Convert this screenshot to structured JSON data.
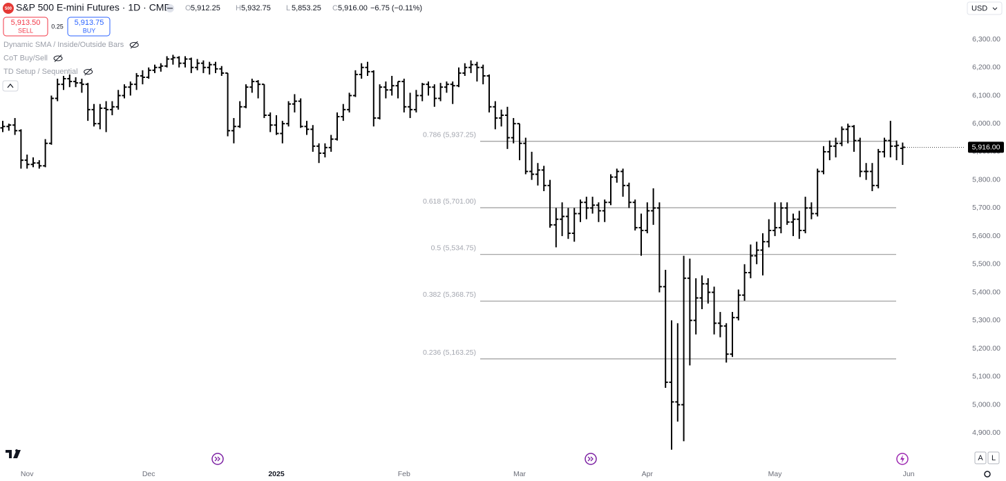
{
  "ui": {
    "symbol_icon": "500",
    "title": "S&P 500 E-mini Futures · 1D · CME",
    "ohlc": [
      {
        "label": "O",
        "value": "5,912.25"
      },
      {
        "label": "H",
        "value": "5,932.75"
      },
      {
        "label": "L",
        "value": "5,853.25"
      },
      {
        "label": "C",
        "value": "5,916.00"
      }
    ],
    "change": "−6.75 (−0.11%)",
    "sell": {
      "price": "5,913.50",
      "label": "SELL"
    },
    "spread": "0.25",
    "buy": {
      "price": "5,913.75",
      "label": "BUY"
    },
    "indicators": [
      "Dynamic SMA / Inside/Outside Bars",
      "CoT Buy/Sell",
      "TD Setup / Sequential"
    ],
    "currency": "USD",
    "scale_buttons": [
      "A",
      "L"
    ]
  },
  "chart_data": {
    "type": "ohlc",
    "color": "#000000",
    "grid": false,
    "categories": [
      null,
      null,
      null,
      null,
      "Nov",
      null,
      null,
      null,
      null,
      null,
      null,
      null,
      null,
      null,
      null,
      null,
      null,
      null,
      null,
      null,
      null,
      null,
      null,
      null,
      "Dec",
      null,
      null,
      null,
      null,
      null,
      null,
      null,
      null,
      null,
      null,
      null,
      null,
      null,
      null,
      null,
      null,
      null,
      null,
      null,
      null,
      "2025",
      null,
      null,
      null,
      null,
      null,
      null,
      null,
      null,
      null,
      null,
      null,
      null,
      null,
      null,
      null,
      null,
      null,
      null,
      null,
      null,
      "Feb",
      null,
      null,
      null,
      null,
      null,
      null,
      null,
      null,
      null,
      null,
      null,
      null,
      null,
      null,
      null,
      null,
      null,
      null,
      "Mar",
      null,
      null,
      null,
      null,
      null,
      null,
      null,
      null,
      null,
      null,
      null,
      null,
      null,
      null,
      null,
      null,
      null,
      null,
      null,
      null,
      "Apr",
      null,
      null,
      null,
      null,
      null,
      null,
      null,
      null,
      null,
      null,
      null,
      null,
      null,
      null,
      null,
      null,
      null,
      null,
      null,
      null,
      "May",
      null,
      null,
      null,
      null,
      null,
      null,
      null,
      null,
      null,
      null,
      null,
      null,
      null,
      null,
      null,
      null,
      null,
      null,
      null,
      null,
      null,
      "Jun"
    ],
    "values": [
      [
        5985,
        6010,
        5970,
        5990
      ],
      [
        5990,
        6000,
        5975,
        5995
      ],
      [
        5995,
        6020,
        5960,
        5975
      ],
      [
        5975,
        5980,
        5840,
        5870
      ],
      [
        5870,
        5890,
        5840,
        5855
      ],
      [
        5855,
        5880,
        5845,
        5860
      ],
      [
        5860,
        5870,
        5840,
        5850
      ],
      [
        5850,
        5945,
        5845,
        5930
      ],
      [
        5930,
        6100,
        5925,
        6090
      ],
      [
        6090,
        6160,
        6080,
        6140
      ],
      [
        6140,
        6170,
        6120,
        6160
      ],
      [
        6160,
        6175,
        6130,
        6150
      ],
      [
        6150,
        6165,
        6130,
        6145
      ],
      [
        6145,
        6160,
        6110,
        6140
      ],
      [
        6140,
        6145,
        6010,
        6050
      ],
      [
        6050,
        6070,
        5990,
        6000
      ],
      [
        6000,
        6070,
        5980,
        6055
      ],
      [
        6055,
        6080,
        5970,
        6050
      ],
      [
        6050,
        6080,
        6030,
        6060
      ],
      [
        6060,
        6120,
        6050,
        6100
      ],
      [
        6100,
        6140,
        6090,
        6130
      ],
      [
        6130,
        6150,
        6100,
        6140
      ],
      [
        6140,
        6180,
        6120,
        6170
      ],
      [
        6170,
        6190,
        6140,
        6165
      ],
      [
        6165,
        6200,
        6160,
        6190
      ],
      [
        6190,
        6210,
        6180,
        6200
      ],
      [
        6200,
        6215,
        6185,
        6205
      ],
      [
        6205,
        6240,
        6200,
        6230
      ],
      [
        6230,
        6245,
        6210,
        6235
      ],
      [
        6235,
        6240,
        6200,
        6215
      ],
      [
        6215,
        6240,
        6200,
        6230
      ],
      [
        6230,
        6235,
        6180,
        6200
      ],
      [
        6200,
        6230,
        6190,
        6215
      ],
      [
        6215,
        6225,
        6180,
        6200
      ],
      [
        6200,
        6220,
        6175,
        6210
      ],
      [
        6210,
        6220,
        6180,
        6195
      ],
      [
        6195,
        6205,
        6170,
        6180
      ],
      [
        6180,
        6180,
        5955,
        5975
      ],
      [
        5975,
        6020,
        5930,
        5990
      ],
      [
        5990,
        6080,
        5985,
        6060
      ],
      [
        6060,
        6140,
        6055,
        6130
      ],
      [
        6130,
        6160,
        6110,
        6150
      ],
      [
        6150,
        6155,
        6090,
        6140
      ],
      [
        6140,
        6140,
        6020,
        6030
      ],
      [
        6030,
        6040,
        5970,
        5995
      ],
      [
        5995,
        6030,
        5960,
        5965
      ],
      [
        5965,
        6010,
        5930,
        6000
      ],
      [
        6000,
        6080,
        5990,
        6070
      ],
      [
        6070,
        6105,
        6040,
        6080
      ],
      [
        6080,
        6090,
        5985,
        5990
      ],
      [
        5990,
        6010,
        5960,
        5980
      ],
      [
        5980,
        5995,
        5900,
        5920
      ],
      [
        5920,
        5930,
        5860,
        5895
      ],
      [
        5895,
        5930,
        5880,
        5915
      ],
      [
        5915,
        5960,
        5900,
        5945
      ],
      [
        5945,
        6040,
        5940,
        6025
      ],
      [
        6025,
        6070,
        6010,
        6050
      ],
      [
        6050,
        6110,
        6040,
        6100
      ],
      [
        6100,
        6190,
        6095,
        6175
      ],
      [
        6175,
        6215,
        6160,
        6200
      ],
      [
        6200,
        6220,
        6170,
        6185
      ],
      [
        6185,
        6190,
        5990,
        6020
      ],
      [
        6020,
        6140,
        6015,
        6130
      ],
      [
        6130,
        6150,
        6090,
        6120
      ],
      [
        6120,
        6170,
        6100,
        6135
      ],
      [
        6135,
        6150,
        6090,
        6150
      ],
      [
        6150,
        6160,
        6040,
        6060
      ],
      [
        6060,
        6110,
        6020,
        6050
      ],
      [
        6050,
        6120,
        6040,
        6100
      ],
      [
        6100,
        6145,
        6080,
        6140
      ],
      [
        6140,
        6150,
        6100,
        6130
      ],
      [
        6130,
        6140,
        6060,
        6090
      ],
      [
        6090,
        6145,
        6080,
        6130
      ],
      [
        6130,
        6150,
        6110,
        6140
      ],
      [
        6140,
        6150,
        6070,
        6135
      ],
      [
        6135,
        6200,
        6130,
        6180
      ],
      [
        6180,
        6215,
        6170,
        6200
      ],
      [
        6200,
        6225,
        6180,
        6210
      ],
      [
        6210,
        6220,
        6150,
        6200
      ],
      [
        6200,
        6210,
        6140,
        6170
      ],
      [
        6170,
        6175,
        6040,
        6060
      ],
      [
        6060,
        6080,
        5980,
        6020
      ],
      [
        6020,
        6050,
        5990,
        6030
      ],
      [
        6030,
        6060,
        5910,
        5950
      ],
      [
        5950,
        6020,
        5930,
        6000
      ],
      [
        6000,
        6000,
        5870,
        5930
      ],
      [
        5930,
        5950,
        5820,
        5830
      ],
      [
        5830,
        5900,
        5800,
        5820
      ],
      [
        5820,
        5860,
        5780,
        5835
      ],
      [
        5835,
        5850,
        5760,
        5780
      ],
      [
        5780,
        5800,
        5630,
        5640
      ],
      [
        5640,
        5700,
        5560,
        5660
      ],
      [
        5660,
        5720,
        5600,
        5670
      ],
      [
        5670,
        5700,
        5590,
        5610
      ],
      [
        5610,
        5700,
        5580,
        5680
      ],
      [
        5680,
        5730,
        5650,
        5720
      ],
      [
        5720,
        5740,
        5660,
        5700
      ],
      [
        5700,
        5740,
        5680,
        5710
      ],
      [
        5710,
        5720,
        5650,
        5690
      ],
      [
        5690,
        5730,
        5650,
        5720
      ],
      [
        5720,
        5820,
        5710,
        5810
      ],
      [
        5810,
        5840,
        5790,
        5830
      ],
      [
        5830,
        5840,
        5740,
        5780
      ],
      [
        5780,
        5790,
        5700,
        5720
      ],
      [
        5720,
        5730,
        5620,
        5630
      ],
      [
        5630,
        5680,
        5530,
        5620
      ],
      [
        5620,
        5720,
        5610,
        5690
      ],
      [
        5690,
        5770,
        5640,
        5700
      ],
      [
        5700,
        5720,
        5400,
        5420
      ],
      [
        5420,
        5480,
        5060,
        5080
      ],
      [
        5080,
        5300,
        4840,
        5010
      ],
      [
        5010,
        5290,
        4940,
        5000
      ],
      [
        5000,
        5530,
        4870,
        5450
      ],
      [
        5450,
        5520,
        5140,
        5300
      ],
      [
        5300,
        5450,
        5250,
        5380
      ],
      [
        5380,
        5460,
        5340,
        5430
      ],
      [
        5430,
        5450,
        5360,
        5400
      ],
      [
        5400,
        5420,
        5250,
        5290
      ],
      [
        5290,
        5330,
        5240,
        5280
      ],
      [
        5280,
        5290,
        5150,
        5180
      ],
      [
        5180,
        5330,
        5170,
        5310
      ],
      [
        5310,
        5410,
        5300,
        5390
      ],
      [
        5390,
        5500,
        5370,
        5470
      ],
      [
        5470,
        5570,
        5450,
        5530
      ],
      [
        5530,
        5580,
        5500,
        5550
      ],
      [
        5550,
        5610,
        5460,
        5580
      ],
      [
        5580,
        5660,
        5560,
        5620
      ],
      [
        5620,
        5720,
        5600,
        5630
      ],
      [
        5630,
        5720,
        5610,
        5700
      ],
      [
        5700,
        5720,
        5640,
        5650
      ],
      [
        5650,
        5680,
        5600,
        5660
      ],
      [
        5660,
        5690,
        5590,
        5620
      ],
      [
        5620,
        5740,
        5610,
        5700
      ],
      [
        5700,
        5720,
        5660,
        5680
      ],
      [
        5680,
        5840,
        5670,
        5830
      ],
      [
        5830,
        5920,
        5820,
        5900
      ],
      [
        5900,
        5940,
        5870,
        5920
      ],
      [
        5920,
        5950,
        5880,
        5930
      ],
      [
        5930,
        5990,
        5920,
        5980
      ],
      [
        5980,
        6000,
        5930,
        5990
      ],
      [
        5990,
        5995,
        5900,
        5940
      ],
      [
        5940,
        5950,
        5810,
        5830
      ],
      [
        5830,
        5860,
        5800,
        5830
      ],
      [
        5830,
        5860,
        5760,
        5780
      ],
      [
        5780,
        5910,
        5770,
        5900
      ],
      [
        5900,
        5950,
        5880,
        5940
      ],
      [
        5940,
        6010,
        5880,
        5920
      ],
      [
        5920,
        5940,
        5870,
        5922.75
      ],
      [
        5912.25,
        5932.75,
        5853.25,
        5916
      ],
      null
    ],
    "ylim": [
      4790,
      6440
    ],
    "yticks": [
      {
        "value": 4900,
        "label": "4,900.00"
      },
      {
        "value": 5000,
        "label": "5,000.00"
      },
      {
        "value": 5100,
        "label": "5,100.00"
      },
      {
        "value": 5200,
        "label": "5,200.00"
      },
      {
        "value": 5300,
        "label": "5,300.00"
      },
      {
        "value": 5400,
        "label": "5,400.00"
      },
      {
        "value": 5500,
        "label": "5,500.00"
      },
      {
        "value": 5600,
        "label": "5,600.00"
      },
      {
        "value": 5700,
        "label": "5,700.00"
      },
      {
        "value": 5800,
        "label": "5,800.00"
      },
      {
        "value": 5900,
        "label": "5,900.00"
      },
      {
        "value": 6000,
        "label": "6,000.00"
      },
      {
        "value": 6100,
        "label": "6,100.00"
      },
      {
        "value": 6200,
        "label": "6,200.00"
      },
      {
        "value": 6300,
        "label": "6,300.00"
      }
    ],
    "levels": [
      {
        "value": 5937.25,
        "label": "0.786 (5,937.25)"
      },
      {
        "value": 5701,
        "label": "0.618 (5,701.00)"
      },
      {
        "value": 5534.75,
        "label": "0.5 (5,534.75)"
      },
      {
        "value": 5368.75,
        "label": "0.382 (5,368.75)"
      },
      {
        "value": 5163.25,
        "label": "0.236 (5,163.25)"
      }
    ],
    "last_price": {
      "value": 5916,
      "label": "5,916.00"
    }
  }
}
